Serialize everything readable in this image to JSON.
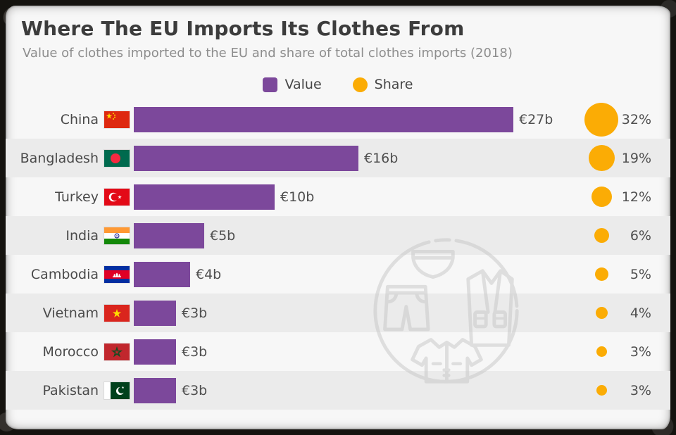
{
  "header": {
    "title": "Where The EU Imports Its Clothes From",
    "subtitle": "Value of clothes imported to the EU and share of total clothes imports (2018)"
  },
  "legend": {
    "value_label": "Value",
    "share_label": "Share"
  },
  "colors": {
    "bar_purple": "#7C489B",
    "dot_amber": "#FBAC05",
    "alt_row_gray": "#EBEBEB",
    "canvas_bg": "#F7F7F7",
    "title_text": "#3C3C3C",
    "subtitle_text": "#8E8E8E"
  },
  "rows": [
    {
      "country": "China",
      "flag_icon": "china-flag-icon",
      "value_eur_b": 27,
      "value_label": "€27b",
      "share_pct": 32,
      "share_label": "32%"
    },
    {
      "country": "Bangladesh",
      "flag_icon": "bangladesh-flag-icon",
      "value_eur_b": 16,
      "value_label": "€16b",
      "share_pct": 19,
      "share_label": "19%"
    },
    {
      "country": "Turkey",
      "flag_icon": "turkey-flag-icon",
      "value_eur_b": 10,
      "value_label": "€10b",
      "share_pct": 12,
      "share_label": "12%"
    },
    {
      "country": "India",
      "flag_icon": "india-flag-icon",
      "value_eur_b": 5,
      "value_label": "€5b",
      "share_pct": 6,
      "share_label": "6%"
    },
    {
      "country": "Cambodia",
      "flag_icon": "cambodia-flag-icon",
      "value_eur_b": 4,
      "value_label": "€4b",
      "share_pct": 5,
      "share_label": "5%"
    },
    {
      "country": "Vietnam",
      "flag_icon": "vietnam-flag-icon",
      "value_eur_b": 3,
      "value_label": "€3b",
      "share_pct": 4,
      "share_label": "4%"
    },
    {
      "country": "Morocco",
      "flag_icon": "morocco-flag-icon",
      "value_eur_b": 3,
      "value_label": "€3b",
      "share_pct": 3,
      "share_label": "3%"
    },
    {
      "country": "Pakistan",
      "flag_icon": "pakistan-flag-icon",
      "value_eur_b": 3,
      "value_label": "€3b",
      "share_pct": 3,
      "share_label": "3%"
    }
  ],
  "chart_data": {
    "type": "bar",
    "orientation": "horizontal",
    "title": "Where The EU Imports Its Clothes From",
    "subtitle": "Value of clothes imported to the EU and share of total clothes imports (2018)",
    "categories": [
      "China",
      "Bangladesh",
      "Turkey",
      "India",
      "Cambodia",
      "Vietnam",
      "Morocco",
      "Pakistan"
    ],
    "series": [
      {
        "name": "Value",
        "unit": "€ billion",
        "values": [
          27,
          16,
          10,
          5,
          4,
          3,
          3,
          3
        ]
      },
      {
        "name": "Share",
        "unit": "% of total EU clothes imports",
        "values": [
          32,
          19,
          12,
          6,
          5,
          4,
          3,
          3
        ]
      }
    ],
    "value_labels": [
      "€27b",
      "€16b",
      "€10b",
      "€5b",
      "€4b",
      "€3b",
      "€3b",
      "€3b"
    ],
    "share_labels": [
      "32%",
      "19%",
      "12%",
      "6%",
      "5%",
      "4%",
      "3%",
      "3%"
    ],
    "legend": [
      "Value",
      "Share"
    ],
    "legend_position": "top",
    "grid": false,
    "share_encoding": "circle area proportional to percent",
    "watermark": "circle with clothes icons (briefs, shorts, jacket, shirt)"
  }
}
